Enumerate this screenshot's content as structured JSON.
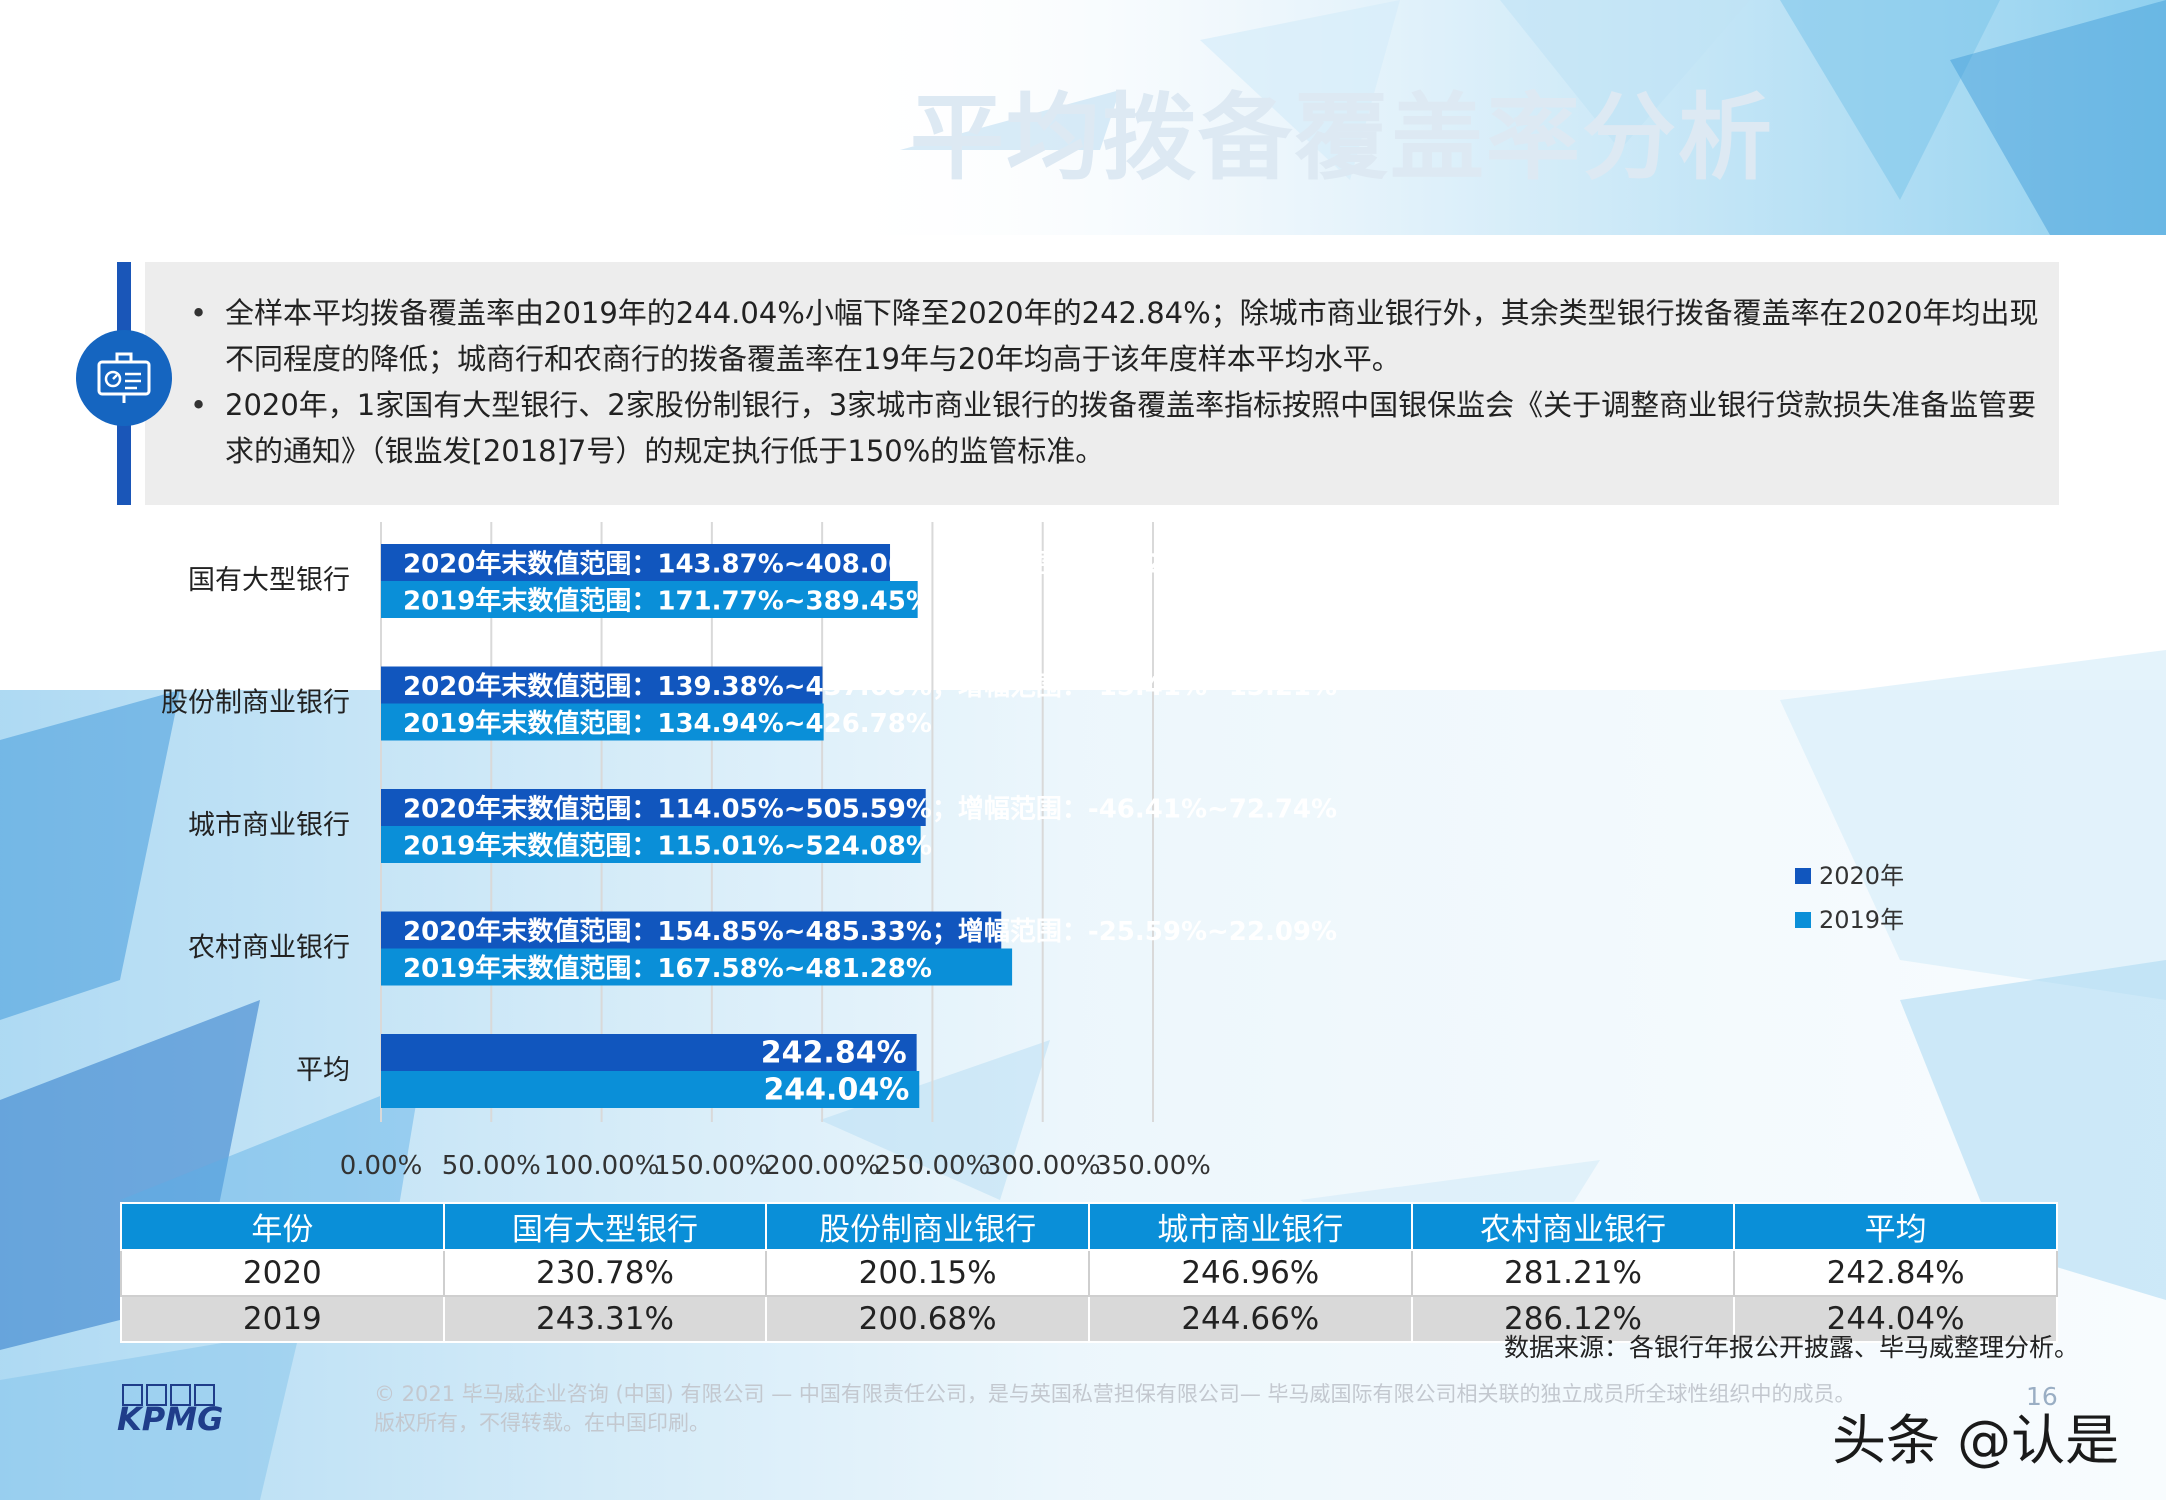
{
  "page": {
    "title": "平均拨备覆盖率分析",
    "bullets": [
      "全样本平均拨备覆盖率由2019年的244.04%小幅下降至2020年的242.84%；除城市商业银行外，其余类型银行拨备覆盖率在2020年均出现不同程度的降低；城商行和农商行的拨备覆盖率在19年与20年均高于该年度样本平均水平。",
      "2020年，1家国有大型银行、2家股份制银行，3家城市商业银行的拨备覆盖率指标按照中国银保监会《关于调整商业银行贷款损失准备监管要求的通知》（银监发[2018]7号）的规定执行低于150%的监管标准。"
    ],
    "source": "数据来源：各银行年报公开披露、毕马威整理分析。",
    "footer": "© 2021 毕马威企业咨询 (中国) 有限公司 — 中国有限责任公司，是与英国私营担保有限公司— 毕马威国际有限公司相关联的独立成员所全球性组织中的成员。版权所有，不得转载。在中国印刷。",
    "page_number": "16",
    "logo": "KPMG",
    "watermark": "头条 @认是",
    "icon": "presentation-board-icon"
  },
  "chart_data": {
    "type": "bar",
    "orientation": "horizontal",
    "categories": [
      "国有大型银行",
      "股份制商业银行",
      "城市商业银行",
      "农村商业银行",
      "平均"
    ],
    "series": [
      {
        "name": "2020年",
        "color": "#1156be",
        "values": [
          230.78,
          200.15,
          246.96,
          281.21,
          242.84
        ]
      },
      {
        "name": "2019年",
        "color": "#0a8fd8",
        "values": [
          243.31,
          200.68,
          244.66,
          286.12,
          244.04
        ]
      }
    ],
    "bar_labels": [
      [
        "2020年末数值范围：143.87%~408.06%；增幅范围：-16.24%~9.98%",
        "2019年末数值范围：171.77%~389.45%"
      ],
      [
        "2020年末数值范围：139.38%~437.68%；增幅范围：-15.41%~13.21%",
        "2019年末数值范围：134.94%~426.78%"
      ],
      [
        "2020年末数值范围：114.05%~505.59%；增幅范围：-46.41%~72.74%",
        "2019年末数值范围：115.01%~524.08%"
      ],
      [
        "2020年末数值范围：154.85%~485.33%；增幅范围：-25.59%~22.09%",
        "2019年末数值范围：167.58%~481.28%"
      ],
      [
        "242.84%",
        "244.04%"
      ]
    ],
    "x_ticks": [
      "0.00%",
      "50.00%",
      "100.00%",
      "150.00%",
      "200.00%",
      "250.00%",
      "300.00%",
      "350.00%"
    ],
    "xlim": [
      0,
      350
    ],
    "grid": true,
    "legend_position": "right"
  },
  "table": {
    "headers": [
      "年份",
      "国有大型银行",
      "股份制商业银行",
      "城市商业银行",
      "农村商业银行",
      "平均"
    ],
    "rows": [
      [
        "2020",
        "230.78%",
        "200.15%",
        "246.96%",
        "281.21%",
        "242.84%"
      ],
      [
        "2019",
        "243.31%",
        "200.68%",
        "244.66%",
        "286.12%",
        "244.04%"
      ]
    ]
  }
}
